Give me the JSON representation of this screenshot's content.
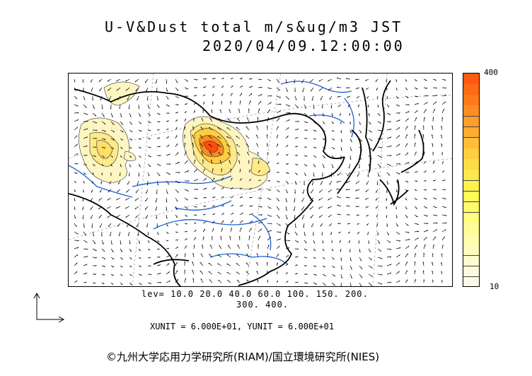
{
  "title": "U-V&Dust total m/s&ug/m3 JST",
  "datetime": "2020/04/09.12:00:00",
  "colorbar": {
    "max_label": "400",
    "min_label": "10",
    "colors": [
      "#ff5a10",
      "#ff6a14",
      "#ff7a1a",
      "#ff8c22",
      "#ff9d2a",
      "#ffad32",
      "#ffbd3a",
      "#ffcd40",
      "#ffdb46",
      "#ffe84a",
      "#fff24e",
      "#fffa55",
      "#fffb6a",
      "#fffc80",
      "#fffc96",
      "#fffcaa",
      "#fefcbc",
      "#fdfbcc",
      "#fcfadc",
      "#fbf9e8"
    ]
  },
  "levels_line1": "lev= 10.0 20.0 40.0 60.0 100. 150. 200.",
  "levels_line2": "300. 400.",
  "units_line": "XUNIT = 6.000E+01, YUNIT = 6.000E+01",
  "copyright": "©九州大学応用力学研究所(RIAM)/国立環境研究所(NIES)",
  "colors": {
    "coast": "#000000",
    "river": "#1f5fd6",
    "grid": "#888888",
    "dust_low": "#fdf6c2",
    "dust_mid": "#ffdf66",
    "dust_high": "#ff8a22",
    "dust_peak": "#ff4e0a"
  }
}
